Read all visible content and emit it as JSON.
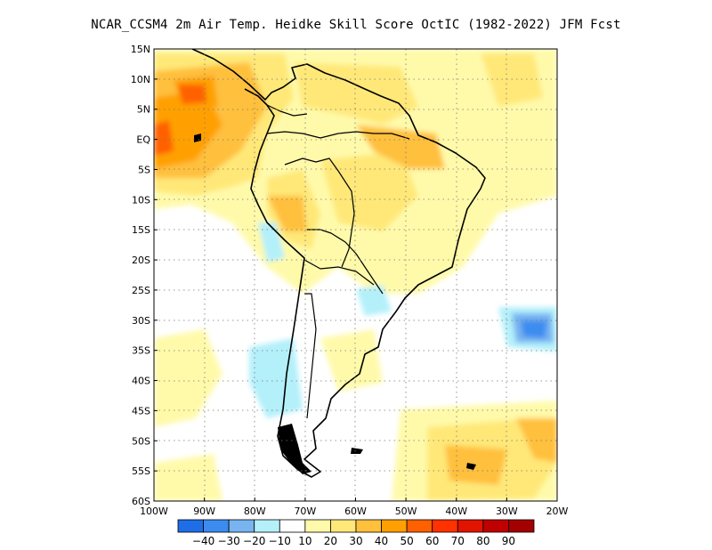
{
  "title": "NCAR_CCSM4  2m Air Temp. Heidke Skill Score OctIC (1982-2022) JFM Fcst",
  "map": {
    "lat_labels": [
      "15N",
      "10N",
      "5N",
      "EQ",
      "5S",
      "10S",
      "15S",
      "20S",
      "25S",
      "30S",
      "35S",
      "40S",
      "45S",
      "50S",
      "55S",
      "60S"
    ],
    "lon_labels": [
      "100W",
      "90W",
      "80W",
      "70W",
      "60W",
      "50W",
      "40W",
      "30W",
      "20W"
    ],
    "grid": "dotted"
  },
  "colorbar": {
    "labels": [
      "-40",
      "-30",
      "-20",
      "-10",
      "10",
      "20",
      "30",
      "40",
      "50",
      "60",
      "70",
      "80",
      "90"
    ],
    "colors": [
      "#1e6ee8",
      "#3c8cf0",
      "#78b4f0",
      "#b4f0fa",
      "#ffffff",
      "#fffaaa",
      "#ffe878",
      "#ffc03c",
      "#ffa000",
      "#ff6000",
      "#ff3200",
      "#e11400",
      "#c00000",
      "#a50000"
    ]
  }
}
